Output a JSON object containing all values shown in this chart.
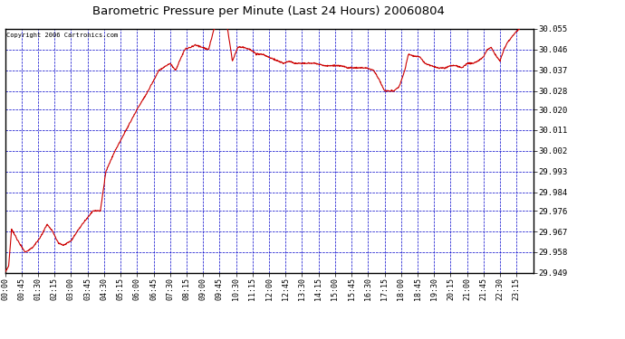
{
  "title": "Barometric Pressure per Minute (Last 24 Hours) 20060804",
  "copyright": "Copyright 2006 Cartronics.com",
  "background_color": "#ffffff",
  "plot_background": "#ffffff",
  "line_color": "#cc0000",
  "grid_color": "#0000cc",
  "text_color": "#000000",
  "yticks": [
    29.949,
    29.958,
    29.967,
    29.976,
    29.984,
    29.993,
    30.002,
    30.011,
    30.02,
    30.028,
    30.037,
    30.046,
    30.055
  ],
  "ylim": [
    29.949,
    30.055
  ],
  "xtick_labels": [
    "00:00",
    "00:45",
    "01:30",
    "02:15",
    "03:00",
    "03:45",
    "04:30",
    "05:15",
    "06:00",
    "06:45",
    "07:30",
    "08:15",
    "09:00",
    "09:45",
    "10:30",
    "11:15",
    "12:00",
    "12:45",
    "13:30",
    "14:15",
    "15:00",
    "15:45",
    "16:30",
    "17:15",
    "18:00",
    "18:45",
    "19:30",
    "20:15",
    "21:00",
    "21:45",
    "22:30",
    "23:15"
  ],
  "xtick_minute_positions": [
    0,
    45,
    90,
    135,
    180,
    225,
    270,
    315,
    360,
    405,
    450,
    495,
    540,
    585,
    630,
    675,
    720,
    765,
    810,
    855,
    900,
    945,
    990,
    1035,
    1080,
    1125,
    1170,
    1215,
    1260,
    1305,
    1350,
    1395
  ],
  "xlim": [
    0,
    1440
  ],
  "keypoints": [
    [
      0,
      29.949
    ],
    [
      10,
      29.952
    ],
    [
      18,
      29.968
    ],
    [
      35,
      29.963
    ],
    [
      55,
      29.958
    ],
    [
      75,
      29.96
    ],
    [
      95,
      29.964
    ],
    [
      115,
      29.97
    ],
    [
      130,
      29.967
    ],
    [
      145,
      29.962
    ],
    [
      160,
      29.961
    ],
    [
      180,
      29.963
    ],
    [
      210,
      29.97
    ],
    [
      240,
      29.976
    ],
    [
      260,
      29.976
    ],
    [
      275,
      29.993
    ],
    [
      300,
      30.002
    ],
    [
      330,
      30.011
    ],
    [
      360,
      30.02
    ],
    [
      390,
      30.028
    ],
    [
      420,
      30.037
    ],
    [
      450,
      30.04
    ],
    [
      465,
      30.037
    ],
    [
      490,
      30.046
    ],
    [
      520,
      30.048
    ],
    [
      555,
      30.046
    ],
    [
      570,
      30.055
    ],
    [
      605,
      30.057
    ],
    [
      620,
      30.041
    ],
    [
      635,
      30.047
    ],
    [
      650,
      30.047
    ],
    [
      670,
      30.046
    ],
    [
      685,
      30.044
    ],
    [
      700,
      30.044
    ],
    [
      715,
      30.043
    ],
    [
      730,
      30.042
    ],
    [
      745,
      30.041
    ],
    [
      760,
      30.04
    ],
    [
      775,
      30.041
    ],
    [
      790,
      30.04
    ],
    [
      810,
      30.04
    ],
    [
      830,
      30.04
    ],
    [
      850,
      30.04
    ],
    [
      870,
      30.039
    ],
    [
      895,
      30.039
    ],
    [
      915,
      30.039
    ],
    [
      935,
      30.038
    ],
    [
      960,
      30.038
    ],
    [
      985,
      30.038
    ],
    [
      1005,
      30.037
    ],
    [
      1020,
      30.033
    ],
    [
      1035,
      30.028
    ],
    [
      1045,
      30.028
    ],
    [
      1060,
      30.028
    ],
    [
      1075,
      30.03
    ],
    [
      1090,
      30.037
    ],
    [
      1100,
      30.044
    ],
    [
      1115,
      30.043
    ],
    [
      1130,
      30.043
    ],
    [
      1145,
      30.04
    ],
    [
      1160,
      30.039
    ],
    [
      1180,
      30.038
    ],
    [
      1200,
      30.038
    ],
    [
      1215,
      30.039
    ],
    [
      1230,
      30.039
    ],
    [
      1245,
      30.038
    ],
    [
      1260,
      30.04
    ],
    [
      1275,
      30.04
    ],
    [
      1290,
      30.041
    ],
    [
      1305,
      30.043
    ],
    [
      1315,
      30.046
    ],
    [
      1325,
      30.047
    ],
    [
      1340,
      30.043
    ],
    [
      1350,
      30.041
    ],
    [
      1360,
      30.046
    ],
    [
      1370,
      30.049
    ],
    [
      1380,
      30.051
    ],
    [
      1395,
      30.054
    ],
    [
      1410,
      30.056
    ],
    [
      1425,
      30.057
    ],
    [
      1439,
      30.058
    ]
  ]
}
